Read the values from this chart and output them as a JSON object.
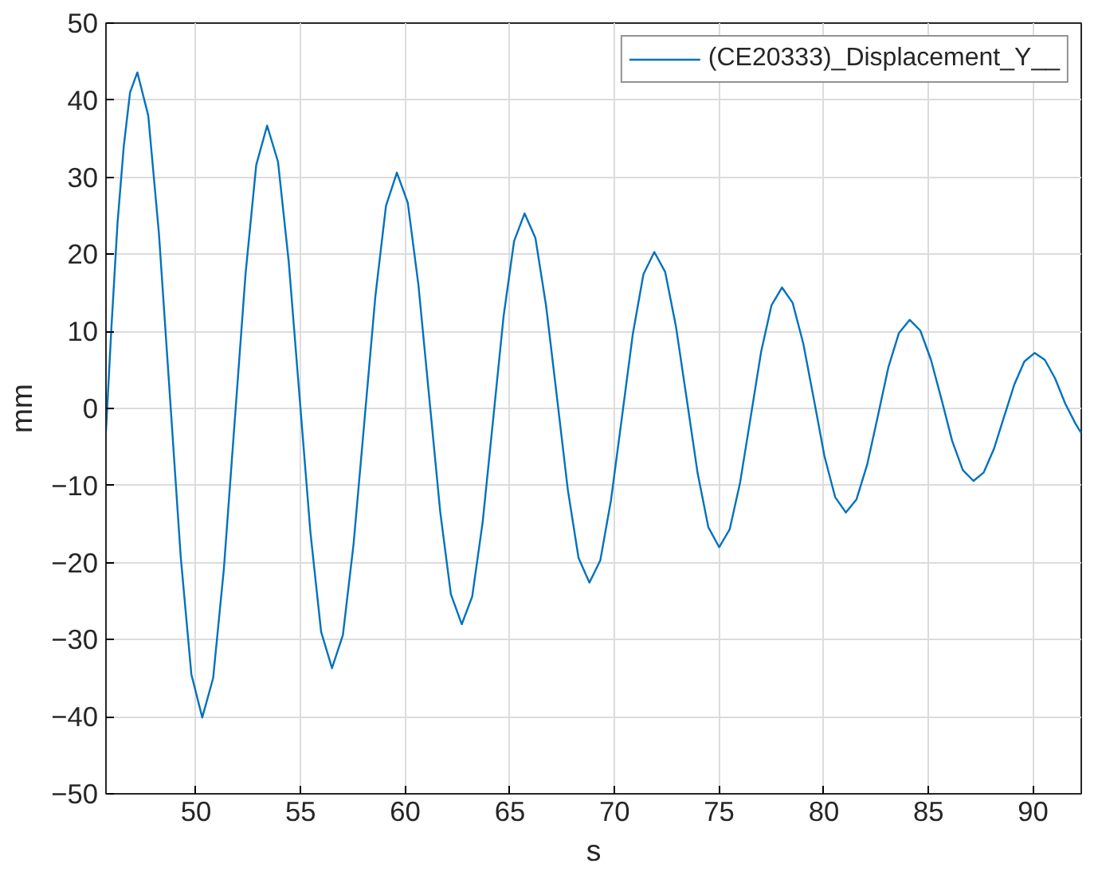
{
  "chart_data": {
    "type": "line",
    "xlabel": "s",
    "ylabel": "mm",
    "xlim": [
      45.7,
      92.3
    ],
    "ylim": [
      -50,
      50
    ],
    "xticks": [
      50,
      55,
      60,
      65,
      70,
      75,
      80,
      85,
      90
    ],
    "yticks": [
      -50,
      -40,
      -30,
      -20,
      -10,
      0,
      10,
      20,
      30,
      40,
      50
    ],
    "grid": true,
    "legend": "top right",
    "line_style": "solid",
    "series": [
      {
        "name": "(CE20333)_Displacement_Y__",
        "color": "#0072bd",
        "x": [
          45.7,
          45.95,
          46.25,
          46.55,
          46.85,
          47.2,
          47.72,
          48.23,
          48.75,
          49.27,
          49.78,
          50.3,
          50.82,
          51.33,
          51.85,
          52.37,
          52.88,
          53.4,
          53.92,
          54.43,
          54.95,
          55.47,
          55.98,
          56.5,
          57.02,
          57.53,
          58.05,
          58.57,
          59.08,
          59.6,
          60.12,
          60.63,
          61.15,
          61.67,
          62.18,
          62.7,
          63.2,
          63.7,
          64.2,
          64.7,
          65.2,
          65.7,
          66.22,
          66.73,
          67.25,
          67.77,
          68.28,
          68.8,
          69.32,
          69.83,
          70.35,
          70.87,
          71.38,
          71.9,
          72.42,
          72.93,
          73.45,
          73.97,
          74.48,
          75.0,
          75.5,
          76.0,
          76.5,
          77.0,
          77.5,
          78.0,
          78.51,
          79.02,
          79.53,
          80.03,
          80.54,
          81.05,
          81.56,
          82.07,
          82.58,
          83.08,
          83.59,
          84.1,
          84.61,
          85.12,
          85.63,
          86.13,
          86.64,
          87.15,
          87.64,
          88.12,
          88.61,
          89.1,
          89.58,
          90.07,
          90.56,
          91.05,
          91.54,
          92.03,
          92.3
        ],
        "values": [
          -3,
          10,
          24,
          34,
          41,
          43.6,
          38.0,
          22.7,
          1.8,
          -19.2,
          -34.5,
          -40.1,
          -35.0,
          -20.9,
          -1.7,
          17.5,
          31.6,
          36.7,
          32.0,
          19.1,
          1.5,
          -16.1,
          -29.0,
          -33.7,
          -29.4,
          -17.6,
          -1.6,
          14.5,
          26.3,
          30.6,
          26.7,
          16.0,
          1.3,
          -13.4,
          -24.1,
          -28.0,
          -24.4,
          -14.7,
          -1.4,
          12.0,
          21.7,
          25.3,
          22.1,
          13.3,
          1.4,
          -10.6,
          -19.4,
          -22.6,
          -19.7,
          -11.9,
          -1.2,
          9.6,
          17.4,
          20.3,
          17.7,
          10.7,
          1.2,
          -8.4,
          -15.4,
          -18.0,
          -15.7,
          -9.6,
          -1.2,
          7.3,
          13.4,
          15.7,
          13.7,
          8.4,
          1.1,
          -6.2,
          -11.5,
          -13.5,
          -11.8,
          -7.3,
          -1.0,
          5.3,
          9.8,
          11.5,
          10.1,
          6.3,
          1.1,
          -4.2,
          -8.0,
          -9.4,
          -8.3,
          -5.3,
          -1.1,
          3.1,
          6.1,
          7.2,
          6.3,
          3.9,
          0.6,
          -2.0,
          -3.2
        ]
      }
    ]
  }
}
